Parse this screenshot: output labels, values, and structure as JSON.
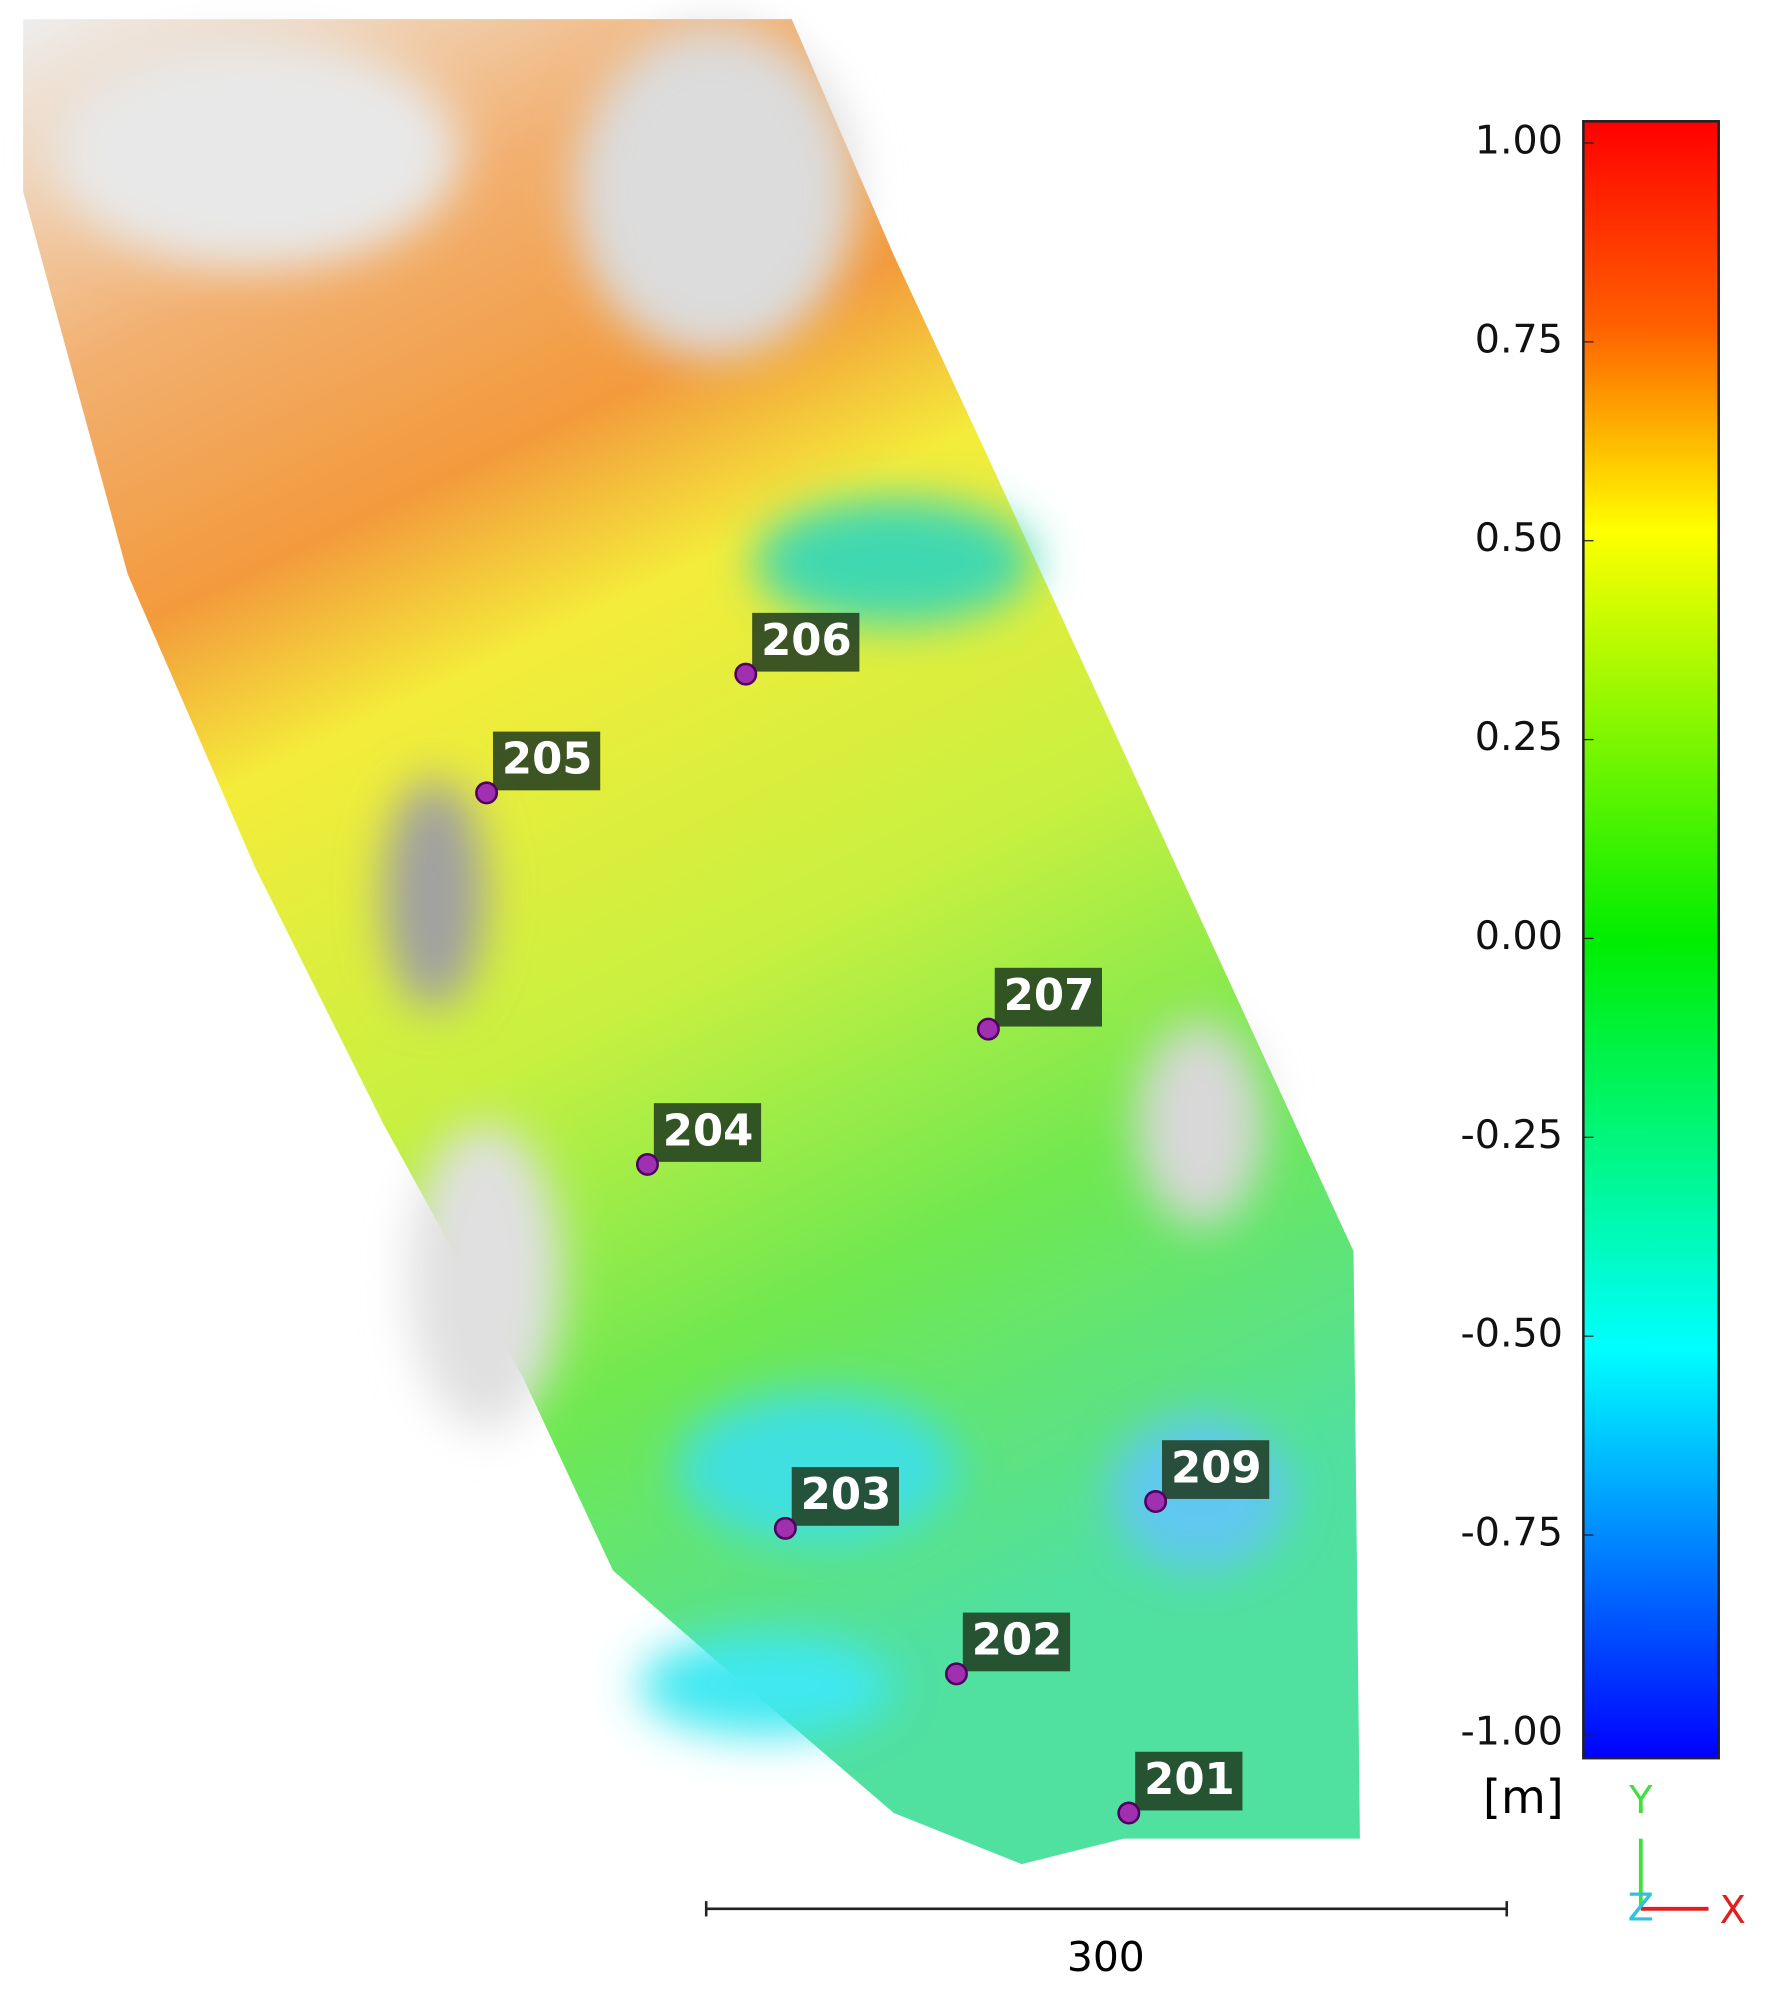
{
  "colorbar": {
    "lim": [
      -1,
      1
    ],
    "ticks": [
      {
        "value": 1,
        "label": "1.00"
      },
      {
        "value": 0.75,
        "label": "0.75"
      },
      {
        "value": 0.5,
        "label": "0.50"
      },
      {
        "value": 0.25,
        "label": "0.25"
      },
      {
        "value": 0,
        "label": "0.00"
      },
      {
        "value": -0.25,
        "label": "-0.25"
      },
      {
        "value": -0.5,
        "label": "-0.50"
      },
      {
        "value": -0.75,
        "label": "-0.75"
      },
      {
        "value": -1,
        "label": "-1.00"
      }
    ],
    "unit": "[m]"
  },
  "markers": [
    {
      "label": "206"
    },
    {
      "label": "205"
    },
    {
      "label": "207"
    },
    {
      "label": "204"
    },
    {
      "label": "203"
    },
    {
      "label": "209"
    },
    {
      "label": "202"
    },
    {
      "label": "201"
    }
  ],
  "scale_bar": {
    "label": "300"
  },
  "axes": {
    "y": "Y",
    "z": "Z",
    "x": "X"
  }
}
